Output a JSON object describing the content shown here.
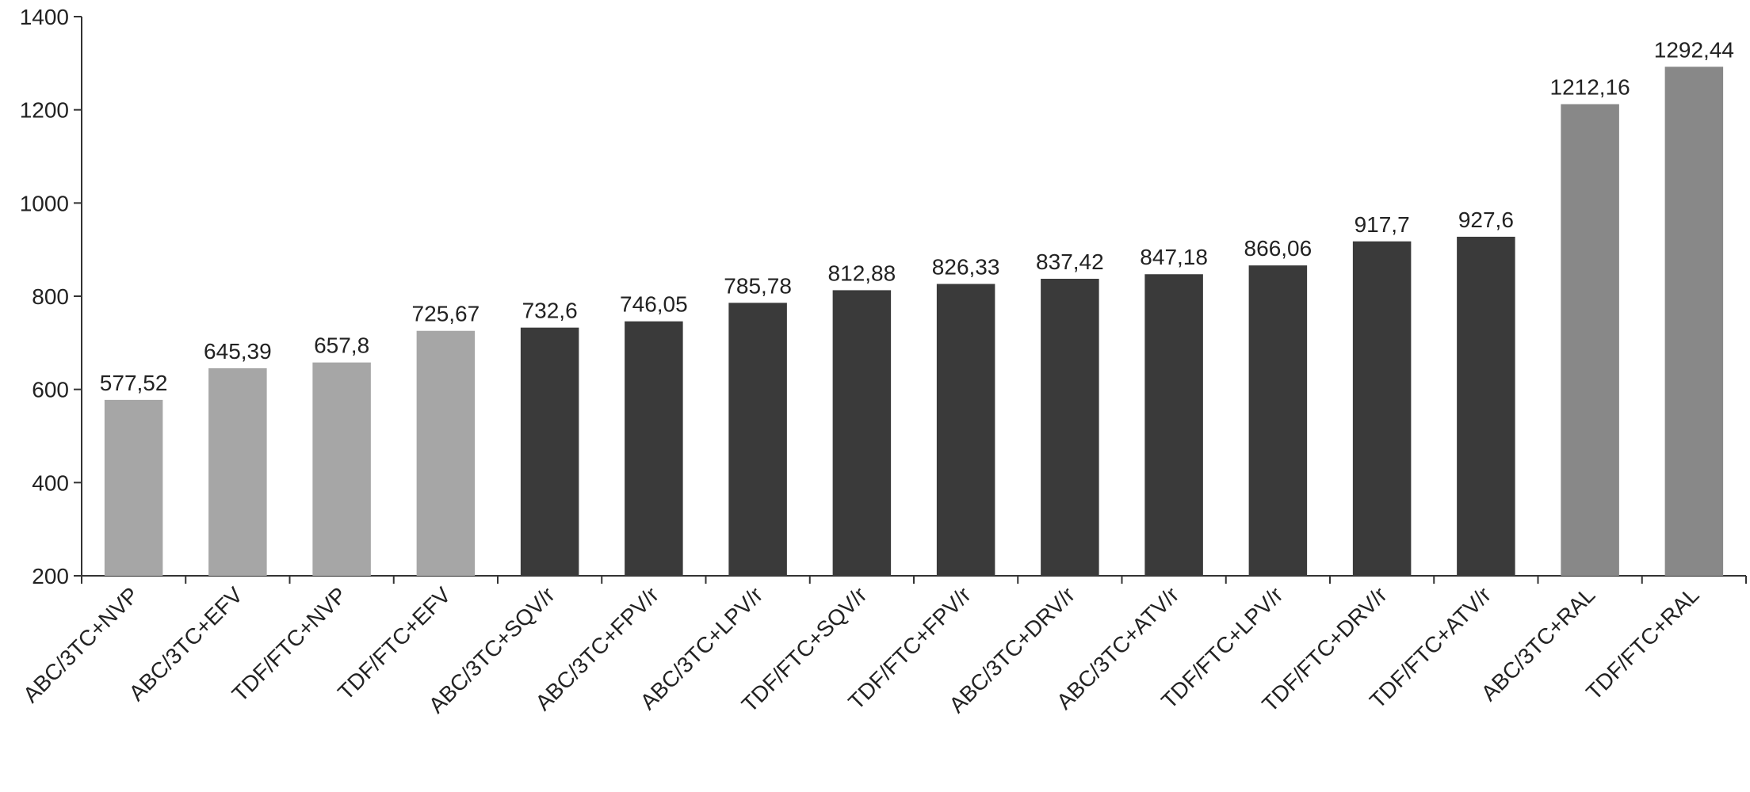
{
  "chart_data": {
    "type": "bar",
    "categories": [
      "ABC/3TC+NVP",
      "ABC/3TC+EFV",
      "TDF/FTC+NVP",
      "TDF/FTC+EFV",
      "ABC/3TC+SQV/r",
      "ABC/3TC+FPV/r",
      "ABC/3TC+LPV/r",
      "TDF/FTC+SQV/r",
      "TDF/FTC+FPV/r",
      "ABC/3TC+DRV/r",
      "ABC/3TC+ATV/r",
      "TDF/FTC+LPV/r",
      "TDF/FTC+DRV/r",
      "TDF/FTC+ATV/r",
      "ABC/3TC+RAL",
      "TDF/FTC+RAL"
    ],
    "values": [
      577.52,
      645.39,
      657.8,
      725.67,
      732.6,
      746.05,
      785.78,
      812.88,
      826.33,
      837.42,
      847.18,
      866.06,
      917.7,
      927.6,
      1212.16,
      1292.44
    ],
    "value_labels": [
      "577,52",
      "645,39",
      "657,8",
      "725,67",
      "732,6",
      "746,05",
      "785,78",
      "812,88",
      "826,33",
      "837,42",
      "847,18",
      "866,06",
      "917,7",
      "927,6",
      "1212,16",
      "1292,44"
    ],
    "colors": [
      "#a6a6a6",
      "#a6a6a6",
      "#a6a6a6",
      "#a6a6a6",
      "#3a3a3a",
      "#3a3a3a",
      "#3a3a3a",
      "#3a3a3a",
      "#3a3a3a",
      "#3a3a3a",
      "#3a3a3a",
      "#3a3a3a",
      "#3a3a3a",
      "#3a3a3a",
      "#888888",
      "#888888"
    ],
    "ylim": [
      200,
      1400
    ],
    "yticks": [
      200,
      400,
      600,
      800,
      1000,
      1200,
      1400
    ],
    "grid": false
  }
}
